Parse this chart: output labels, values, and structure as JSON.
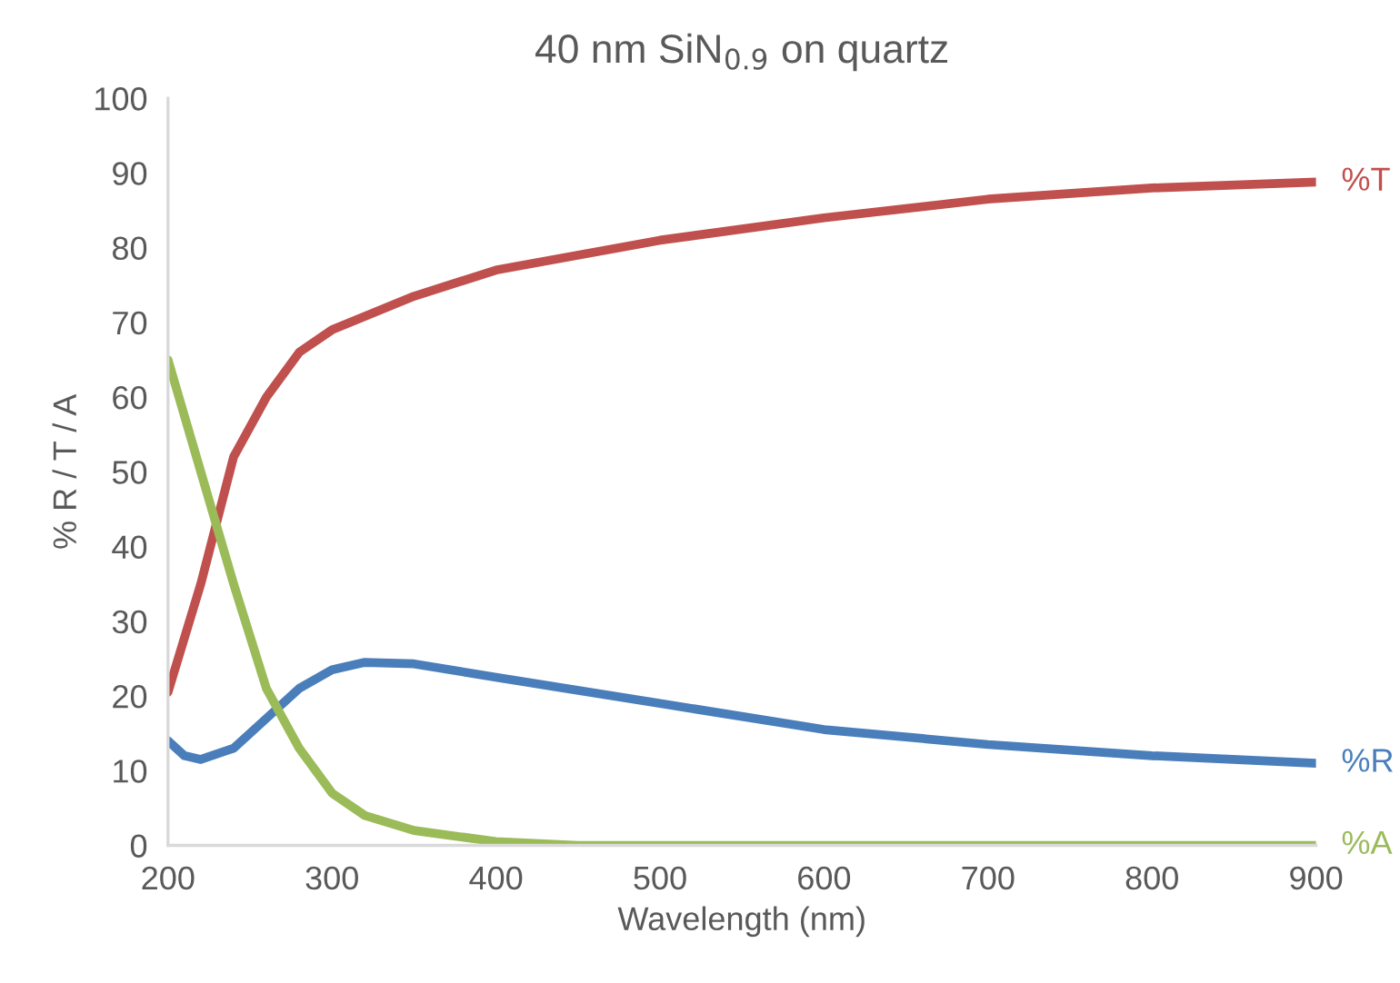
{
  "chart_data": {
    "type": "line",
    "title": "40 nm SiN$_{0.9}$ on quartz",
    "xlabel": "Wavelength (nm)",
    "ylabel": "% R / T / A",
    "xlim": [
      200,
      900
    ],
    "xticks": [
      200,
      300,
      400,
      500,
      600,
      700,
      800,
      900
    ],
    "ylim": [
      0,
      100
    ],
    "yticks": [
      0,
      10,
      20,
      30,
      40,
      50,
      60,
      70,
      80,
      90,
      100
    ],
    "grid": false,
    "legend": false,
    "series": [
      {
        "name": "%T",
        "color": "#c0504d",
        "x": [
          200,
          220,
          240,
          260,
          280,
          300,
          350,
          400,
          500,
          600,
          700,
          800,
          900
        ],
        "values": [
          20.5,
          35,
          52,
          60,
          66,
          69,
          73.5,
          77,
          81,
          84,
          86.5,
          88,
          88.8
        ]
      },
      {
        "name": "%R",
        "color": "#4a7ebb",
        "x": [
          200,
          210,
          220,
          240,
          260,
          280,
          300,
          320,
          350,
          400,
          500,
          600,
          700,
          800,
          900
        ],
        "values": [
          14,
          12,
          11.5,
          13,
          17,
          21,
          23.5,
          24.5,
          24.3,
          22.5,
          19,
          15.5,
          13.5,
          12,
          11
        ]
      },
      {
        "name": "%A",
        "color": "#9bbb59",
        "x": [
          200,
          220,
          240,
          260,
          280,
          300,
          320,
          350,
          400,
          450,
          900
        ],
        "values": [
          65,
          50,
          35,
          21,
          13,
          7,
          4,
          2,
          0.5,
          0,
          0
        ]
      }
    ]
  }
}
